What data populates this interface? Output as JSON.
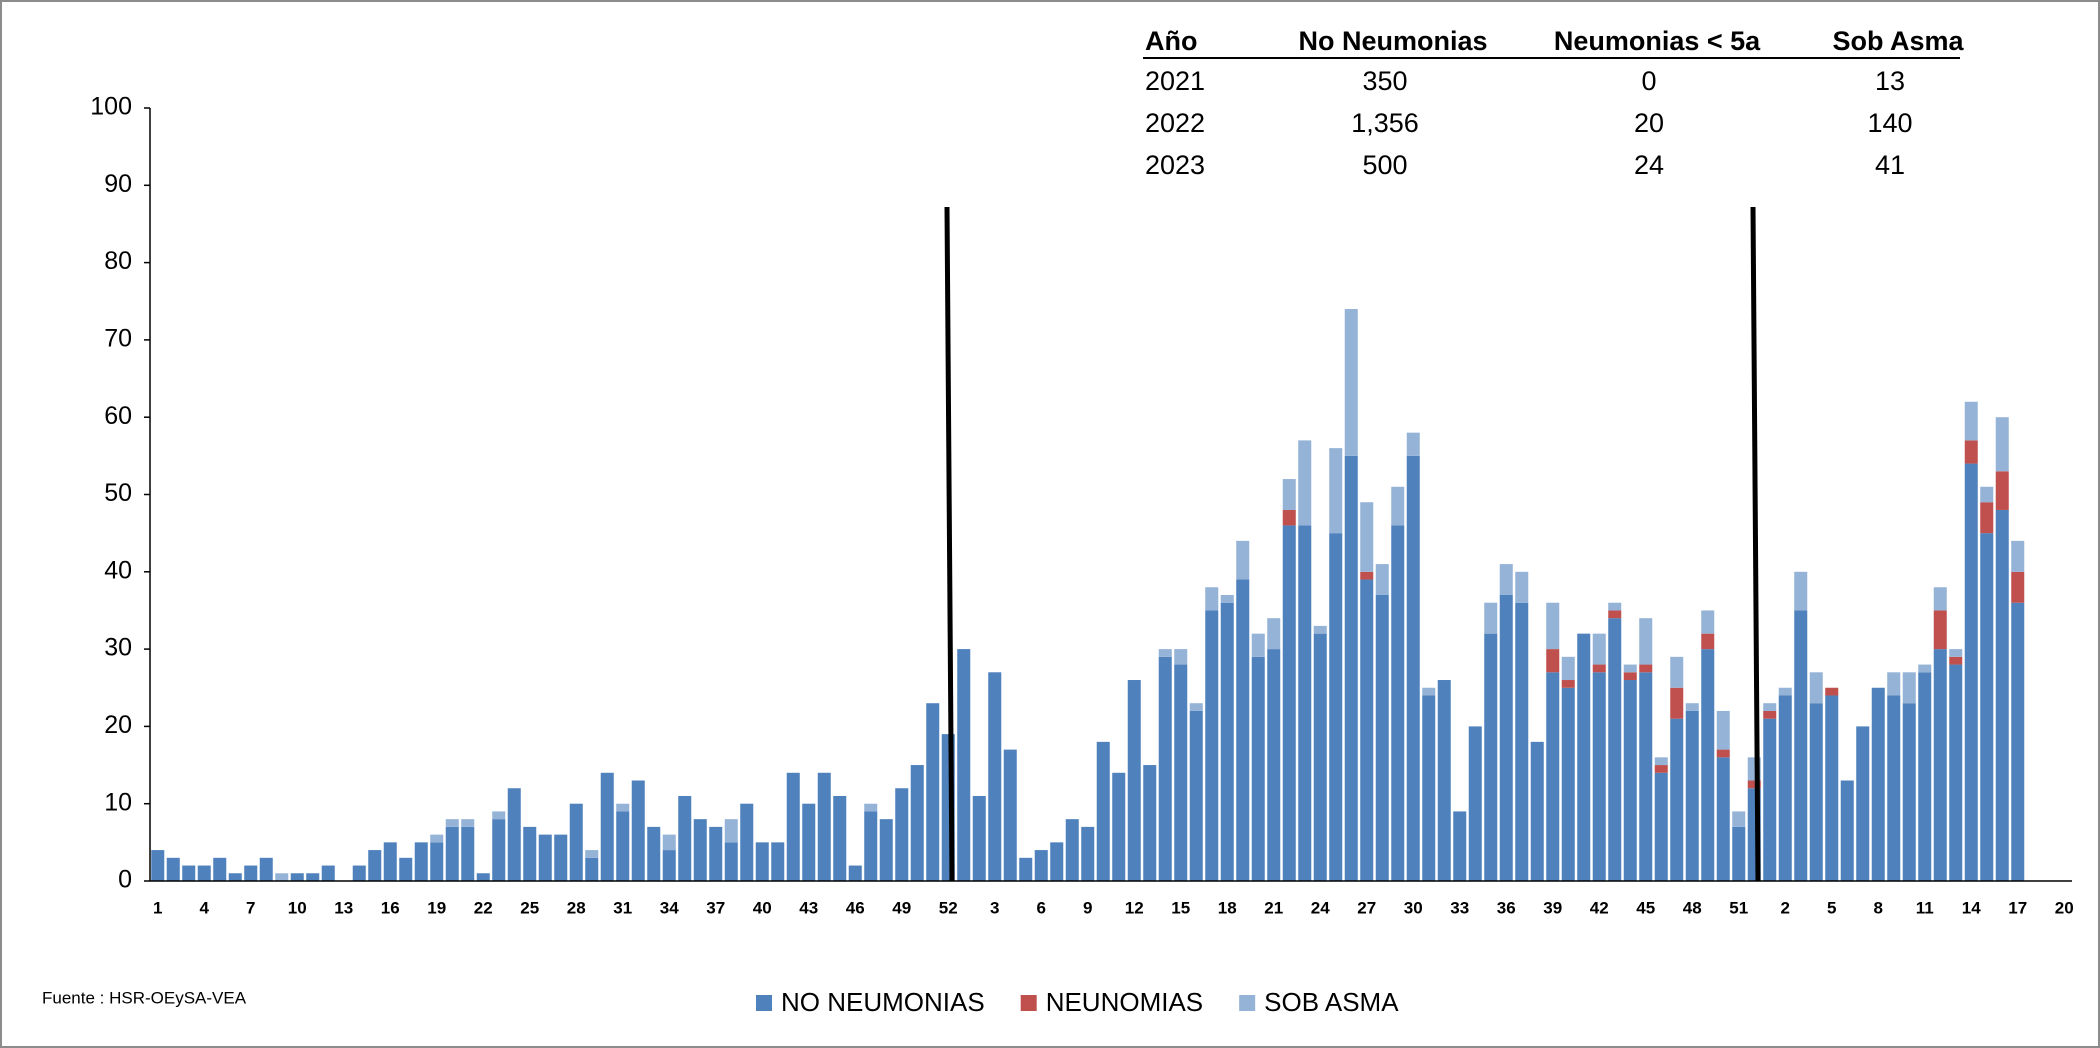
{
  "chart_data": {
    "type": "stacked-bar",
    "table": {
      "header": [
        "Año",
        "No Neumonias",
        "Neumonias < 5a",
        "Sob  Asma"
      ],
      "rows": [
        [
          "2021",
          "350",
          "0",
          "13"
        ],
        [
          "2022",
          "1,356",
          "20",
          "140"
        ],
        [
          "2023",
          "500",
          "24",
          "41"
        ]
      ]
    },
    "source": "Fuente : HSR-OEySA-VEA",
    "categories": [
      "1",
      null,
      null,
      "4",
      null,
      null,
      "7",
      null,
      null,
      "10",
      null,
      null,
      "13",
      null,
      null,
      "16",
      null,
      null,
      "19",
      null,
      null,
      "22",
      null,
      null,
      "25",
      null,
      null,
      "28",
      null,
      null,
      "31",
      null,
      null,
      "34",
      null,
      null,
      "37",
      null,
      null,
      "40",
      null,
      null,
      "43",
      null,
      null,
      "46",
      null,
      null,
      "49",
      null,
      null,
      "52",
      null,
      null,
      "3",
      null,
      null,
      "6",
      null,
      null,
      "9",
      null,
      null,
      "12",
      null,
      null,
      "15",
      null,
      null,
      "18",
      null,
      null,
      "21",
      null,
      null,
      "24",
      null,
      null,
      "27",
      null,
      null,
      "30",
      null,
      null,
      "33",
      null,
      null,
      "36",
      null,
      null,
      "39",
      null,
      null,
      "42",
      null,
      null,
      "45",
      null,
      null,
      "48",
      null,
      null,
      "51",
      null,
      null,
      "2",
      null,
      null,
      "5",
      null,
      null,
      "8",
      null,
      null,
      "11",
      null,
      null,
      "14",
      null,
      null,
      "17",
      null,
      null,
      "20"
    ],
    "series": [
      {
        "name": "NO NEUMONIAS",
        "color": "#4f81bd",
        "values": [
          4,
          3,
          2,
          2,
          3,
          1,
          2,
          3,
          0,
          1,
          1,
          2,
          0,
          2,
          4,
          5,
          3,
          5,
          5,
          7,
          7,
          1,
          8,
          12,
          7,
          6,
          6,
          10,
          3,
          14,
          9,
          13,
          7,
          4,
          11,
          8,
          7,
          5,
          10,
          5,
          5,
          14,
          10,
          14,
          11,
          2,
          9,
          8,
          12,
          15,
          23,
          19,
          30,
          11,
          27,
          17,
          3,
          4,
          5,
          8,
          7,
          18,
          14,
          26,
          15,
          29,
          28,
          22,
          35,
          36,
          39,
          29,
          30,
          46,
          46,
          32,
          45,
          55,
          39,
          37,
          46,
          55,
          24,
          26,
          9,
          20,
          32,
          37,
          36,
          18,
          27,
          25,
          32,
          27,
          34,
          26,
          27,
          14,
          21,
          22,
          30,
          16,
          7,
          12,
          21,
          24,
          35,
          23,
          24,
          13,
          20,
          25,
          24,
          23,
          27,
          30,
          28,
          54,
          45,
          48,
          36,
          null,
          null,
          null
        ]
      },
      {
        "name": "NEUNOMIAS",
        "color": "#c0504d",
        "values": [
          0,
          0,
          0,
          0,
          0,
          0,
          0,
          0,
          0,
          0,
          0,
          0,
          0,
          0,
          0,
          0,
          0,
          0,
          0,
          0,
          0,
          0,
          0,
          0,
          0,
          0,
          0,
          0,
          0,
          0,
          0,
          0,
          0,
          0,
          0,
          0,
          0,
          0,
          0,
          0,
          0,
          0,
          0,
          0,
          0,
          0,
          0,
          0,
          0,
          0,
          0,
          0,
          0,
          0,
          0,
          0,
          0,
          0,
          0,
          0,
          0,
          0,
          0,
          0,
          0,
          0,
          0,
          0,
          0,
          0,
          0,
          0,
          0,
          2,
          0,
          0,
          0,
          0,
          1,
          0,
          0,
          0,
          0,
          0,
          0,
          0,
          0,
          0,
          0,
          0,
          3,
          1,
          0,
          1,
          1,
          1,
          1,
          1,
          4,
          0,
          2,
          1,
          0,
          1,
          1,
          0,
          0,
          0,
          1,
          0,
          0,
          0,
          0,
          0,
          0,
          5,
          1,
          3,
          4,
          5,
          4,
          null,
          null,
          null
        ]
      },
      {
        "name": "SOB ASMA",
        "color": "#95b3d7",
        "values": [
          0,
          0,
          0,
          0,
          0,
          0,
          0,
          0,
          1,
          0,
          0,
          0,
          0,
          0,
          0,
          0,
          0,
          0,
          1,
          1,
          1,
          0,
          1,
          0,
          0,
          0,
          0,
          0,
          1,
          0,
          1,
          0,
          0,
          2,
          0,
          0,
          0,
          3,
          0,
          0,
          0,
          0,
          0,
          0,
          0,
          0,
          1,
          0,
          0,
          0,
          0,
          0,
          0,
          0,
          0,
          0,
          0,
          0,
          0,
          0,
          0,
          0,
          0,
          0,
          0,
          1,
          2,
          1,
          3,
          1,
          5,
          3,
          4,
          4,
          11,
          1,
          11,
          19,
          9,
          4,
          5,
          3,
          1,
          0,
          0,
          0,
          4,
          4,
          4,
          0,
          6,
          3,
          0,
          4,
          1,
          1,
          6,
          1,
          4,
          1,
          3,
          5,
          2,
          3,
          1,
          1,
          5,
          4,
          0,
          0,
          0,
          0,
          3,
          4,
          1,
          3,
          1,
          5,
          2,
          7,
          4,
          null,
          null,
          null
        ]
      }
    ],
    "ylim": [
      0,
      100
    ],
    "yticks": [
      0,
      10,
      20,
      30,
      40,
      50,
      60,
      70,
      80,
      90,
      100
    ],
    "grid": false
  }
}
